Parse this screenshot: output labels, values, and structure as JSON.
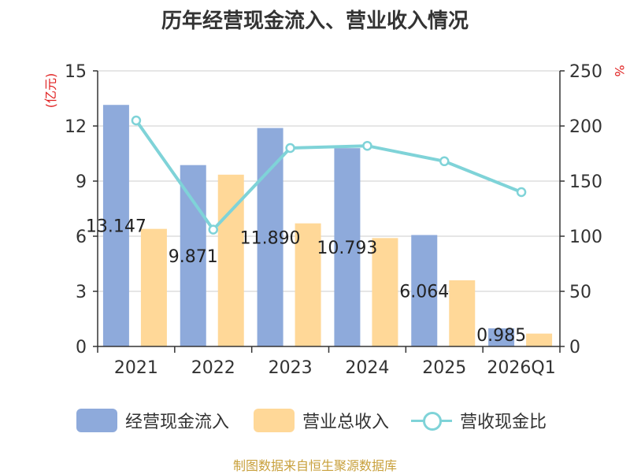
{
  "chart_data": {
    "type": "bar+line",
    "title": "历年经营现金流入、营业收入情况",
    "categories": [
      "2021",
      "2022",
      "2023",
      "2024",
      "2025",
      "2026Q1"
    ],
    "y_left": {
      "label": "(亿元)",
      "ticks": [
        0,
        3,
        6,
        9,
        12,
        15
      ],
      "range": [
        0,
        15
      ]
    },
    "y_right": {
      "label": "%",
      "ticks": [
        0,
        50,
        100,
        150,
        200,
        250
      ],
      "range": [
        0,
        250
      ]
    },
    "series": [
      {
        "name": "经营现金流入",
        "type": "bar",
        "axis": "left",
        "color": "#8eaadb",
        "values": [
          13.147,
          9.871,
          11.89,
          10.793,
          6.064,
          0.985
        ],
        "labels": [
          "13.147",
          "9.871",
          "11.890",
          "10.793",
          "6.064",
          "0.985"
        ]
      },
      {
        "name": "营业总收入",
        "type": "bar",
        "axis": "left",
        "color": "#ffd898",
        "values": [
          6.4,
          9.35,
          6.7,
          5.9,
          3.6,
          0.7
        ]
      },
      {
        "name": "营收现金比",
        "type": "line",
        "axis": "right",
        "color": "#7fd3d8",
        "values": [
          205,
          106,
          180,
          182,
          168,
          140
        ]
      }
    ],
    "grid": true,
    "legend_position": "bottom"
  },
  "source_note": "制图数据来自恒生聚源数据库"
}
